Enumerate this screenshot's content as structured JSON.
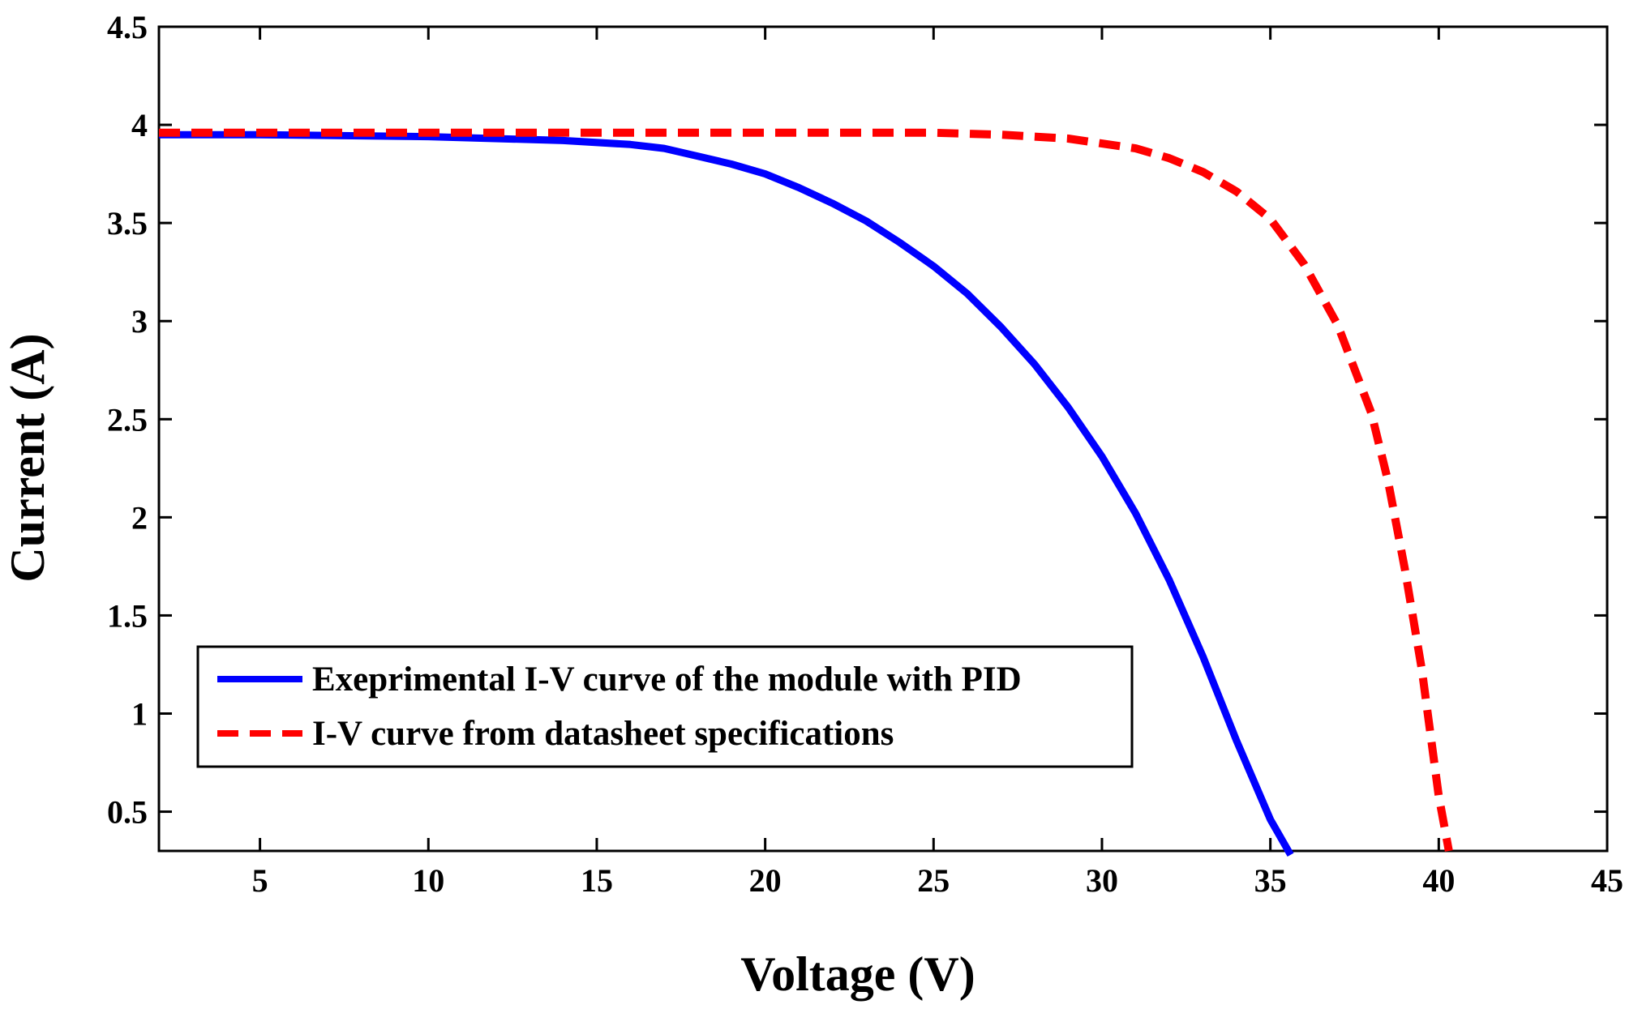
{
  "chart_data": {
    "type": "line",
    "title": "",
    "xlabel": "Voltage (V)",
    "ylabel": "Current (A)",
    "xlim": [
      2,
      45
    ],
    "ylim": [
      0.3,
      4.5
    ],
    "xticks": [
      5,
      10,
      15,
      20,
      25,
      30,
      35,
      40,
      45
    ],
    "xtick_labels": [
      "5",
      "10",
      "15",
      "20",
      "25",
      "30",
      "35",
      "40",
      "45"
    ],
    "yticks": [
      0.5,
      1,
      1.5,
      2,
      2.5,
      3,
      3.5,
      4,
      4.5
    ],
    "ytick_labels": [
      "0.5",
      "1",
      "1.5",
      "2",
      "2.5",
      "3",
      "3.5",
      "4",
      "4.5"
    ],
    "grid": false,
    "legend_position": "bottom-left",
    "series": [
      {
        "name": "Exeprimental I-V curve of the module with PID",
        "color": "#0000ff",
        "style": "solid",
        "x": [
          2,
          5,
          10,
          14,
          16,
          17,
          18,
          19,
          20,
          21,
          22,
          23,
          24,
          25,
          26,
          27,
          28,
          29,
          30,
          31,
          32,
          33,
          34,
          35,
          35.6
        ],
        "y": [
          3.95,
          3.95,
          3.94,
          3.92,
          3.9,
          3.88,
          3.84,
          3.8,
          3.75,
          3.68,
          3.6,
          3.51,
          3.4,
          3.28,
          3.14,
          2.97,
          2.78,
          2.56,
          2.31,
          2.02,
          1.68,
          1.29,
          0.86,
          0.46,
          0.28
        ]
      },
      {
        "name": "I-V curve from datasheet specifications",
        "color": "#ff0000",
        "style": "dashed",
        "x": [
          2,
          10,
          20,
          25,
          27,
          29,
          31,
          32,
          33,
          34,
          35,
          36,
          37,
          38,
          38.5,
          39,
          39.5,
          40,
          40.3
        ],
        "y": [
          3.96,
          3.96,
          3.96,
          3.96,
          3.95,
          3.93,
          3.88,
          3.83,
          3.76,
          3.66,
          3.52,
          3.29,
          2.98,
          2.53,
          2.18,
          1.73,
          1.22,
          0.58,
          0.3
        ]
      }
    ]
  }
}
